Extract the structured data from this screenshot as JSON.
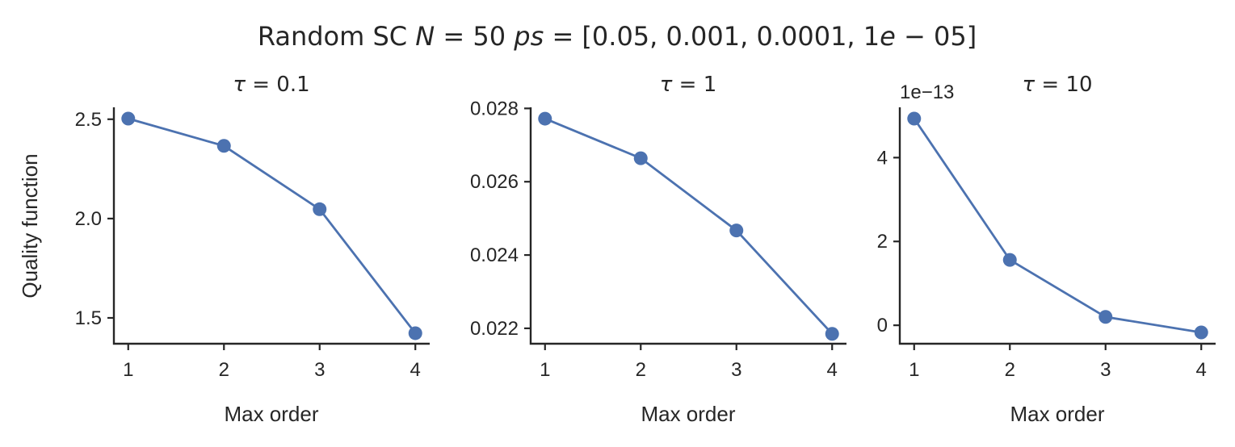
{
  "figure": {
    "title": "Random SC N = 50 ps = [0.05, 0.001, 0.0001, 1e − 05]",
    "title_parts": {
      "prefix": "Random SC ",
      "N": "N",
      "eq1": " = 50 ",
      "ps": "ps",
      "eq2": " = [0.05, 0.001, 0.0001, 1",
      "e": "e",
      "suffix": " − 05]"
    },
    "accent_color": "#4c72b0"
  },
  "chart_data": [
    {
      "type": "line",
      "title": "τ = 0.1",
      "title_parts": {
        "sym": "τ",
        "rest": " = 0.1"
      },
      "x": [
        1,
        2,
        3,
        4
      ],
      "series": [
        {
          "values": [
            2.503,
            2.366,
            2.047,
            1.423
          ]
        }
      ],
      "xlabel": "Max order",
      "ylabel": "Quality function",
      "xlim": [
        0.85,
        4.15
      ],
      "ylim": [
        1.37,
        2.56
      ],
      "xticks": [
        1,
        2,
        3,
        4
      ],
      "xtick_labels": [
        "1",
        "2",
        "3",
        "4"
      ],
      "yticks": [
        1.5,
        2.0,
        2.5
      ],
      "ytick_labels": [
        "1.5",
        "2.0",
        "2.5"
      ],
      "offset_text": "",
      "grid": false,
      "marker": "circle"
    },
    {
      "type": "line",
      "title": "τ = 1",
      "title_parts": {
        "sym": "τ",
        "rest": " = 1"
      },
      "x": [
        1,
        2,
        3,
        4
      ],
      "series": [
        {
          "values": [
            0.02772,
            0.02664,
            0.02467,
            0.02185
          ]
        }
      ],
      "xlabel": "Max order",
      "ylabel": "",
      "xlim": [
        0.85,
        4.15
      ],
      "ylim": [
        0.02158,
        0.02803
      ],
      "xticks": [
        1,
        2,
        3,
        4
      ],
      "xtick_labels": [
        "1",
        "2",
        "3",
        "4"
      ],
      "yticks": [
        0.022,
        0.024,
        0.026,
        0.028
      ],
      "ytick_labels": [
        "0.022",
        "0.024",
        "0.026",
        "0.028"
      ],
      "offset_text": "",
      "grid": false,
      "marker": "circle"
    },
    {
      "type": "line",
      "title": "τ = 10",
      "title_parts": {
        "sym": "τ",
        "rest": " = 10"
      },
      "x": [
        1,
        2,
        3,
        4
      ],
      "series": [
        {
          "values": [
            4.93e-13,
            1.56e-13,
            2e-14,
            -1.7e-14
          ]
        }
      ],
      "xlabel": "Max order",
      "ylabel": "",
      "xlim": [
        0.85,
        4.15
      ],
      "ylim": [
        -4.4e-14,
        5.2e-13
      ],
      "xticks": [
        1,
        2,
        3,
        4
      ],
      "xtick_labels": [
        "1",
        "2",
        "3",
        "4"
      ],
      "yticks": [
        0,
        2e-13,
        4e-13
      ],
      "ytick_labels": [
        "0",
        "2",
        "4"
      ],
      "offset_text": "1e−13",
      "grid": false,
      "marker": "circle"
    }
  ]
}
